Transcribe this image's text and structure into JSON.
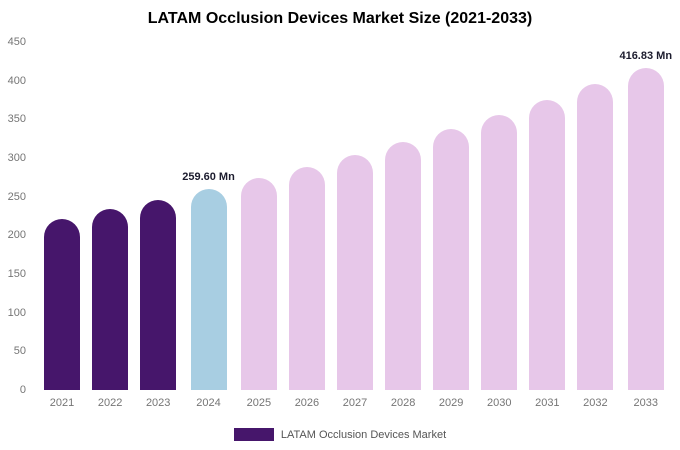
{
  "title": "LATAM Occlusion Devices Market Size (2021-2033)",
  "legend": {
    "label": "LATAM Occlusion Devices Market",
    "swatch_color": "#46166B"
  },
  "colors": {
    "historical": "#46166B",
    "current_year": "#A8CEE2",
    "forecast": "#E7C7E9"
  },
  "chart_data": {
    "type": "bar",
    "title": "LATAM Occlusion Devices Market Size (2021-2033)",
    "xlabel": "",
    "ylabel": "",
    "ylim": [
      0,
      450
    ],
    "yticks": [
      0,
      50,
      100,
      150,
      200,
      250,
      300,
      350,
      400,
      450
    ],
    "grid": false,
    "legend_position": "bottom",
    "categories": [
      "2021",
      "2022",
      "2023",
      "2024",
      "2025",
      "2026",
      "2027",
      "2028",
      "2029",
      "2030",
      "2031",
      "2032",
      "2033"
    ],
    "values": [
      221.6,
      233.6,
      246.3,
      259.6,
      273.6,
      288.4,
      304.0,
      320.5,
      337.8,
      356.1,
      375.4,
      395.7,
      416.83
    ],
    "bar_colors": [
      "#46166B",
      "#46166B",
      "#46166B",
      "#A8CEE2",
      "#E7C7E9",
      "#E7C7E9",
      "#E7C7E9",
      "#E7C7E9",
      "#E7C7E9",
      "#E7C7E9",
      "#E7C7E9",
      "#E7C7E9",
      "#E7C7E9"
    ],
    "annotations": [
      {
        "category": "2024",
        "text": "259.60 Mn"
      },
      {
        "category": "2033",
        "text": "416.83 Mn"
      }
    ]
  }
}
